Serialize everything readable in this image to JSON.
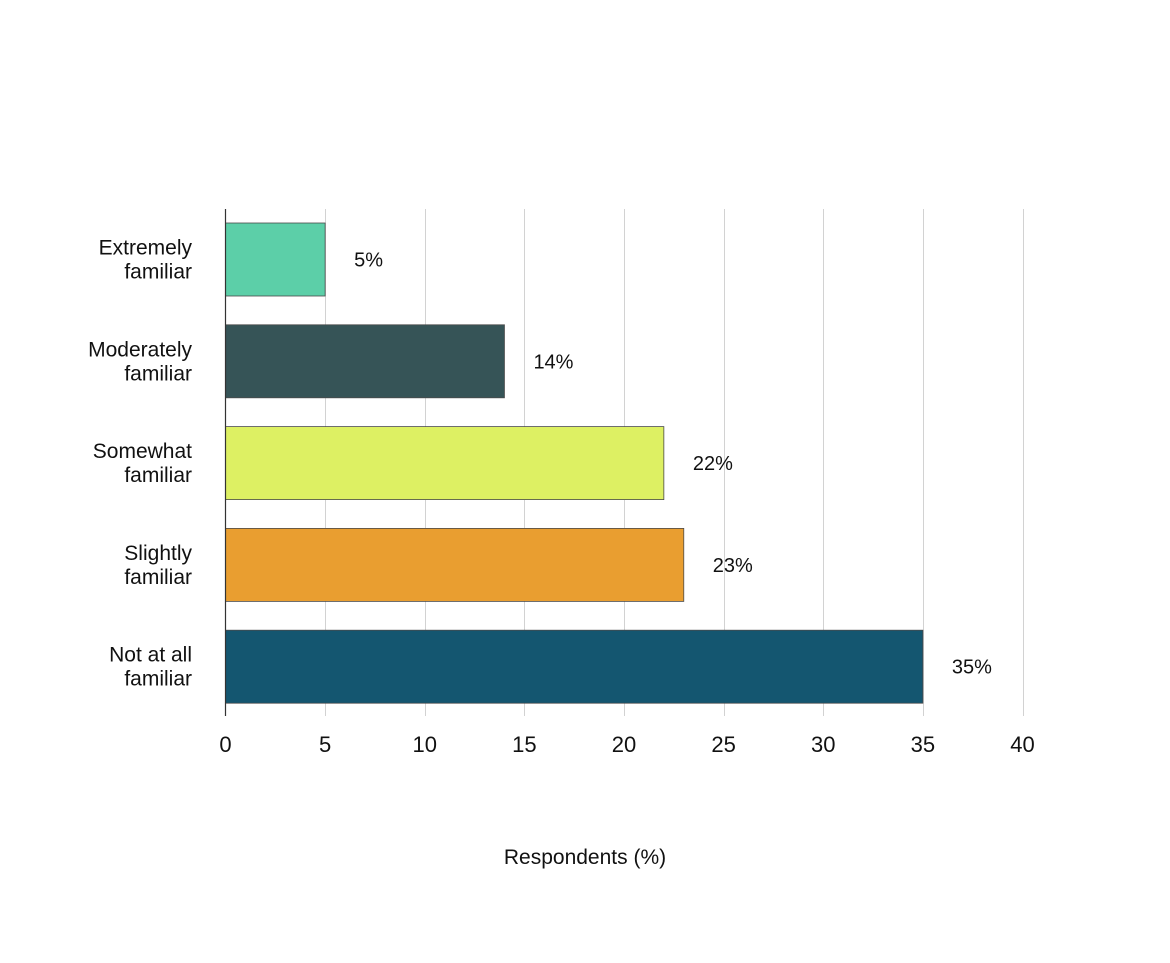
{
  "chart_data": {
    "type": "bar",
    "orientation": "horizontal",
    "categories": [
      [
        "Extremely",
        "familiar"
      ],
      [
        "Moderately",
        "familiar"
      ],
      [
        "Somewhat",
        "familiar"
      ],
      [
        "Slightly",
        "familiar"
      ],
      [
        "Not at all",
        "familiar"
      ]
    ],
    "values": [
      5,
      14,
      22,
      23,
      35
    ],
    "data_labels": [
      "5%",
      "14%",
      "22%",
      "23%",
      "35%"
    ],
    "colors": [
      "#5ccfa8",
      "#365457",
      "#ddf063",
      "#e99e30",
      "#145670"
    ],
    "xlabel": "Respondents (%)",
    "xlim": [
      0,
      40
    ],
    "xticks": [
      0,
      5,
      10,
      15,
      20,
      25,
      30,
      35,
      40
    ],
    "xtick_labels": [
      "0",
      "5",
      "10",
      "15",
      "20",
      "25",
      "30",
      "35",
      "40"
    ],
    "grid": "vertical",
    "legend": "none"
  }
}
